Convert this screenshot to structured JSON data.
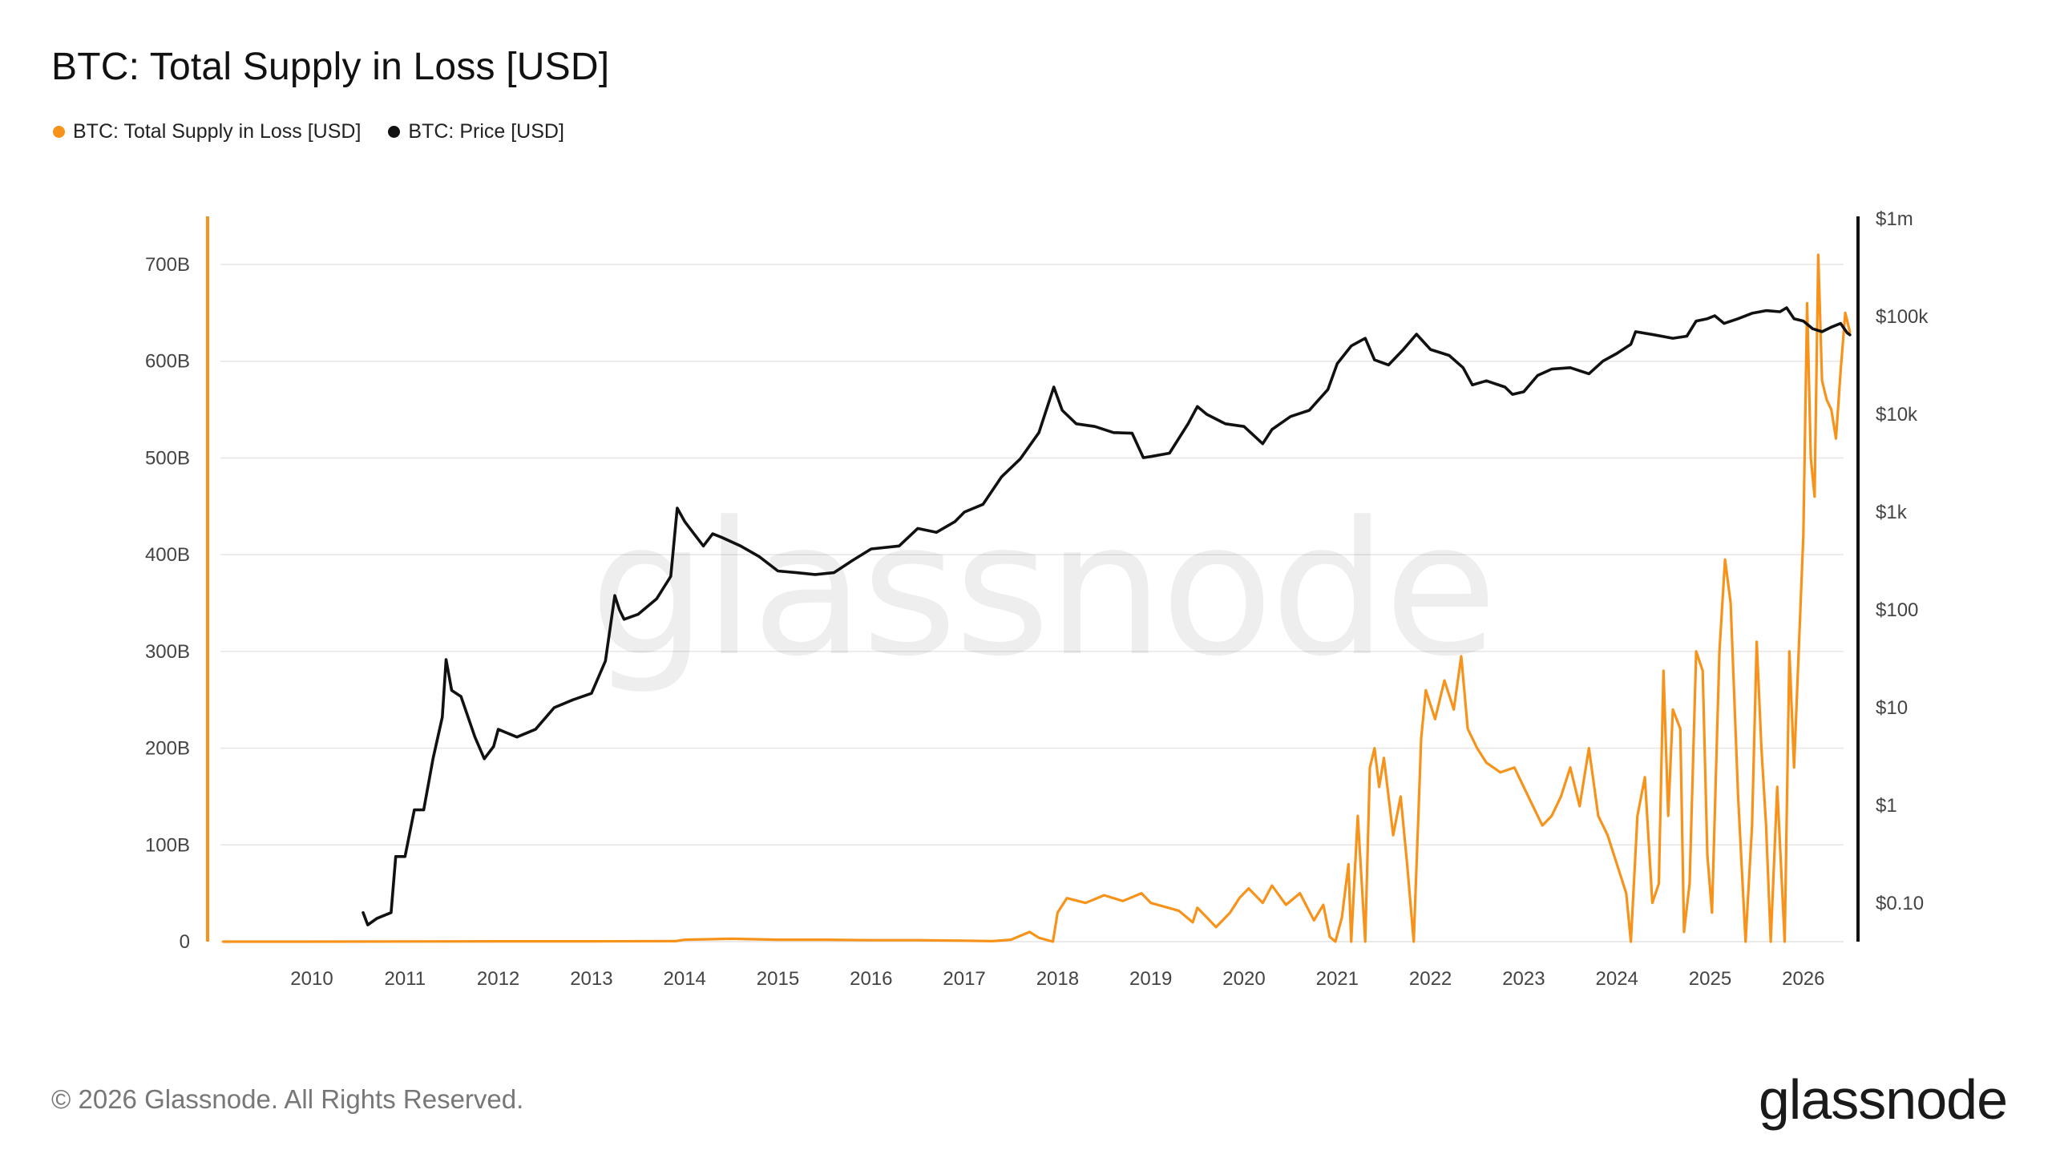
{
  "title": "BTC: Total Supply in Loss [USD]",
  "legend": [
    {
      "label": "BTC: Total Supply in Loss [USD]",
      "color": "#f7931a"
    },
    {
      "label": "BTC: Price [USD]",
      "color": "#111111"
    }
  ],
  "watermark": "glassnode",
  "footer": "© 2026 Glassnode. All Rights Reserved.",
  "logo": "glassnode",
  "chart_data": {
    "type": "line",
    "title": "BTC: Total Supply in Loss [USD]",
    "grid": true,
    "legend_position": "top-left",
    "x_ticks": [
      "2010",
      "2011",
      "2012",
      "2013",
      "2014",
      "2015",
      "2016",
      "2017",
      "2018",
      "2019",
      "2020",
      "2021",
      "2022",
      "2023",
      "2024",
      "2025",
      "2026"
    ],
    "x_range": [
      2009.0,
      2026.55
    ],
    "y_left": {
      "ticks": [
        "0",
        "100B",
        "200B",
        "300B",
        "400B",
        "500B",
        "600B",
        "700B"
      ],
      "tick_values": [
        0,
        100,
        200,
        300,
        400,
        500,
        600,
        700
      ],
      "unit": "B USD",
      "range": [
        0,
        750
      ]
    },
    "y_right": {
      "scale": "log",
      "ticks": [
        "$0.10",
        "$1",
        "$10",
        "$100",
        "$1k",
        "$10k",
        "$100k",
        "$1m"
      ],
      "tick_values": [
        0.1,
        1,
        10,
        100,
        1000,
        10000,
        100000,
        1000000
      ],
      "range": [
        0.04,
        1000000
      ]
    },
    "series": [
      {
        "name": "BTC: Total Supply in Loss [USD]",
        "axis": "left",
        "color": "#f7931a",
        "points": [
          [
            2009.05,
            0
          ],
          [
            2010.0,
            0
          ],
          [
            2011.0,
            0.2
          ],
          [
            2012.0,
            0.3
          ],
          [
            2013.0,
            0.3
          ],
          [
            2013.9,
            0.5
          ],
          [
            2014.0,
            2
          ],
          [
            2014.5,
            3
          ],
          [
            2015.0,
            2
          ],
          [
            2015.5,
            2
          ],
          [
            2016.0,
            1.5
          ],
          [
            2016.5,
            1.5
          ],
          [
            2017.0,
            1
          ],
          [
            2017.3,
            0.5
          ],
          [
            2017.5,
            2
          ],
          [
            2017.7,
            10
          ],
          [
            2017.8,
            4
          ],
          [
            2017.95,
            0
          ],
          [
            2018.0,
            30
          ],
          [
            2018.1,
            45
          ],
          [
            2018.3,
            40
          ],
          [
            2018.5,
            48
          ],
          [
            2018.7,
            42
          ],
          [
            2018.9,
            50
          ],
          [
            2019.0,
            40
          ],
          [
            2019.3,
            32
          ],
          [
            2019.45,
            20
          ],
          [
            2019.5,
            35
          ],
          [
            2019.6,
            25
          ],
          [
            2019.7,
            15
          ],
          [
            2019.85,
            30
          ],
          [
            2019.95,
            45
          ],
          [
            2020.05,
            55
          ],
          [
            2020.2,
            40
          ],
          [
            2020.3,
            58
          ],
          [
            2020.45,
            38
          ],
          [
            2020.6,
            50
          ],
          [
            2020.75,
            22
          ],
          [
            2020.85,
            38
          ],
          [
            2020.92,
            5
          ],
          [
            2020.98,
            0
          ],
          [
            2021.05,
            25
          ],
          [
            2021.12,
            80
          ],
          [
            2021.15,
            0
          ],
          [
            2021.22,
            130
          ],
          [
            2021.3,
            0
          ],
          [
            2021.35,
            180
          ],
          [
            2021.4,
            200
          ],
          [
            2021.45,
            160
          ],
          [
            2021.5,
            190
          ],
          [
            2021.6,
            110
          ],
          [
            2021.68,
            150
          ],
          [
            2021.75,
            80
          ],
          [
            2021.82,
            0
          ],
          [
            2021.87,
            130
          ],
          [
            2021.9,
            210
          ],
          [
            2021.95,
            260
          ],
          [
            2022.05,
            230
          ],
          [
            2022.15,
            270
          ],
          [
            2022.25,
            240
          ],
          [
            2022.33,
            295
          ],
          [
            2022.4,
            220
          ],
          [
            2022.5,
            200
          ],
          [
            2022.6,
            185
          ],
          [
            2022.75,
            175
          ],
          [
            2022.9,
            180
          ],
          [
            2023.0,
            160
          ],
          [
            2023.1,
            140
          ],
          [
            2023.2,
            120
          ],
          [
            2023.3,
            130
          ],
          [
            2023.4,
            150
          ],
          [
            2023.5,
            180
          ],
          [
            2023.6,
            140
          ],
          [
            2023.7,
            200
          ],
          [
            2023.8,
            130
          ],
          [
            2023.9,
            110
          ],
          [
            2024.0,
            80
          ],
          [
            2024.1,
            50
          ],
          [
            2024.15,
            0
          ],
          [
            2024.22,
            130
          ],
          [
            2024.3,
            170
          ],
          [
            2024.38,
            40
          ],
          [
            2024.45,
            60
          ],
          [
            2024.5,
            280
          ],
          [
            2024.55,
            130
          ],
          [
            2024.6,
            240
          ],
          [
            2024.68,
            220
          ],
          [
            2024.72,
            10
          ],
          [
            2024.78,
            60
          ],
          [
            2024.85,
            300
          ],
          [
            2024.92,
            280
          ],
          [
            2024.97,
            90
          ],
          [
            2025.02,
            30
          ],
          [
            2025.1,
            300
          ],
          [
            2025.16,
            395
          ],
          [
            2025.22,
            350
          ],
          [
            2025.3,
            150
          ],
          [
            2025.38,
            0
          ],
          [
            2025.45,
            120
          ],
          [
            2025.5,
            310
          ],
          [
            2025.55,
            200
          ],
          [
            2025.6,
            120
          ],
          [
            2025.65,
            0
          ],
          [
            2025.72,
            160
          ],
          [
            2025.8,
            0
          ],
          [
            2025.85,
            300
          ],
          [
            2025.9,
            180
          ],
          [
            2026.0,
            420
          ],
          [
            2026.04,
            660
          ],
          [
            2026.08,
            500
          ],
          [
            2026.12,
            460
          ],
          [
            2026.16,
            710
          ],
          [
            2026.2,
            580
          ],
          [
            2026.25,
            560
          ],
          [
            2026.3,
            550
          ],
          [
            2026.35,
            520
          ],
          [
            2026.4,
            590
          ],
          [
            2026.45,
            650
          ],
          [
            2026.5,
            630
          ]
        ]
      },
      {
        "name": "BTC: Price [USD]",
        "axis": "right",
        "color": "#111111",
        "points": [
          [
            2010.55,
            0.08
          ],
          [
            2010.6,
            0.06
          ],
          [
            2010.7,
            0.07
          ],
          [
            2010.85,
            0.08
          ],
          [
            2010.9,
            0.3
          ],
          [
            2011.0,
            0.3
          ],
          [
            2011.1,
            0.9
          ],
          [
            2011.2,
            0.9
          ],
          [
            2011.3,
            3
          ],
          [
            2011.4,
            8
          ],
          [
            2011.44,
            31
          ],
          [
            2011.5,
            15
          ],
          [
            2011.6,
            13
          ],
          [
            2011.75,
            5
          ],
          [
            2011.85,
            3
          ],
          [
            2011.95,
            4
          ],
          [
            2012.0,
            6
          ],
          [
            2012.2,
            5
          ],
          [
            2012.4,
            6
          ],
          [
            2012.6,
            10
          ],
          [
            2012.8,
            12
          ],
          [
            2013.0,
            14
          ],
          [
            2013.15,
            30
          ],
          [
            2013.25,
            140
          ],
          [
            2013.3,
            100
          ],
          [
            2013.35,
            80
          ],
          [
            2013.5,
            90
          ],
          [
            2013.7,
            130
          ],
          [
            2013.85,
            220
          ],
          [
            2013.92,
            1100
          ],
          [
            2014.0,
            800
          ],
          [
            2014.1,
            600
          ],
          [
            2014.2,
            450
          ],
          [
            2014.3,
            600
          ],
          [
            2014.4,
            550
          ],
          [
            2014.6,
            450
          ],
          [
            2014.8,
            350
          ],
          [
            2015.0,
            250
          ],
          [
            2015.2,
            240
          ],
          [
            2015.4,
            230
          ],
          [
            2015.6,
            240
          ],
          [
            2015.8,
            320
          ],
          [
            2016.0,
            420
          ],
          [
            2016.3,
            450
          ],
          [
            2016.5,
            680
          ],
          [
            2016.7,
            620
          ],
          [
            2016.9,
            800
          ],
          [
            2017.0,
            1000
          ],
          [
            2017.2,
            1200
          ],
          [
            2017.4,
            2300
          ],
          [
            2017.6,
            3500
          ],
          [
            2017.8,
            6500
          ],
          [
            2017.96,
            19000
          ],
          [
            2018.05,
            11000
          ],
          [
            2018.2,
            8000
          ],
          [
            2018.4,
            7500
          ],
          [
            2018.6,
            6500
          ],
          [
            2018.8,
            6400
          ],
          [
            2018.92,
            3600
          ],
          [
            2019.0,
            3700
          ],
          [
            2019.2,
            4000
          ],
          [
            2019.4,
            8000
          ],
          [
            2019.5,
            12000
          ],
          [
            2019.6,
            10000
          ],
          [
            2019.8,
            8000
          ],
          [
            2020.0,
            7500
          ],
          [
            2020.2,
            5000
          ],
          [
            2020.3,
            7000
          ],
          [
            2020.5,
            9500
          ],
          [
            2020.7,
            11000
          ],
          [
            2020.9,
            18000
          ],
          [
            2021.0,
            33000
          ],
          [
            2021.15,
            50000
          ],
          [
            2021.3,
            60000
          ],
          [
            2021.4,
            36000
          ],
          [
            2021.55,
            32000
          ],
          [
            2021.7,
            45000
          ],
          [
            2021.85,
            66000
          ],
          [
            2022.0,
            46000
          ],
          [
            2022.2,
            40000
          ],
          [
            2022.35,
            30000
          ],
          [
            2022.45,
            20000
          ],
          [
            2022.6,
            22000
          ],
          [
            2022.8,
            19000
          ],
          [
            2022.88,
            16000
          ],
          [
            2023.0,
            17000
          ],
          [
            2023.15,
            25000
          ],
          [
            2023.3,
            29000
          ],
          [
            2023.5,
            30000
          ],
          [
            2023.7,
            26000
          ],
          [
            2023.85,
            35000
          ],
          [
            2024.0,
            42000
          ],
          [
            2024.15,
            52000
          ],
          [
            2024.2,
            70000
          ],
          [
            2024.4,
            65000
          ],
          [
            2024.6,
            60000
          ],
          [
            2024.75,
            63000
          ],
          [
            2024.85,
            90000
          ],
          [
            2024.97,
            95000
          ],
          [
            2025.05,
            102000
          ],
          [
            2025.15,
            85000
          ],
          [
            2025.3,
            95000
          ],
          [
            2025.45,
            108000
          ],
          [
            2025.6,
            115000
          ],
          [
            2025.75,
            112000
          ],
          [
            2025.82,
            123000
          ],
          [
            2025.9,
            95000
          ],
          [
            2026.0,
            90000
          ],
          [
            2026.1,
            75000
          ],
          [
            2026.2,
            70000
          ],
          [
            2026.3,
            78000
          ],
          [
            2026.4,
            85000
          ],
          [
            2026.47,
            68000
          ],
          [
            2026.5,
            65000
          ]
        ]
      }
    ]
  }
}
